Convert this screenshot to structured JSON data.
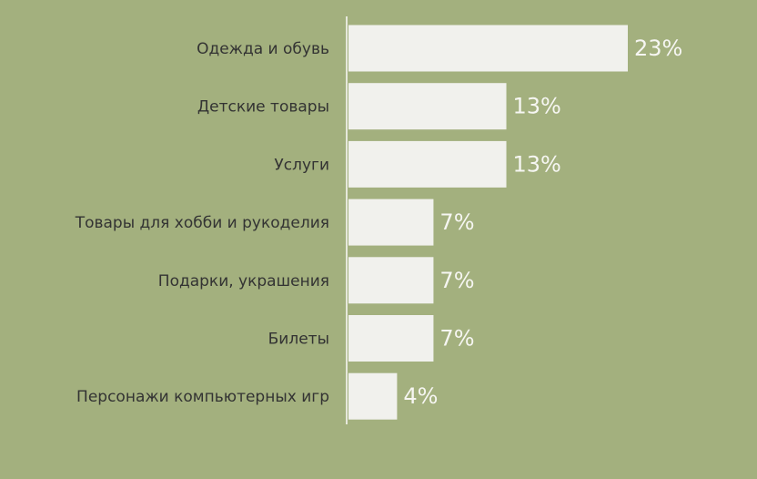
{
  "chart_data": {
    "type": "bar",
    "orientation": "horizontal",
    "categories": [
      "Одежда и обувь",
      "Детские товары",
      "Услуги",
      "Товары для хобби и рукоделия",
      "Подарки, украшения",
      "Билеты",
      "Персонажи компьютерных игр"
    ],
    "values": [
      23,
      13,
      13,
      7,
      7,
      7,
      4
    ],
    "value_labels": [
      "23%",
      "13%",
      "13%",
      "7%",
      "7%",
      "7%",
      "4%"
    ],
    "color": "#f1f1ed"
  }
}
